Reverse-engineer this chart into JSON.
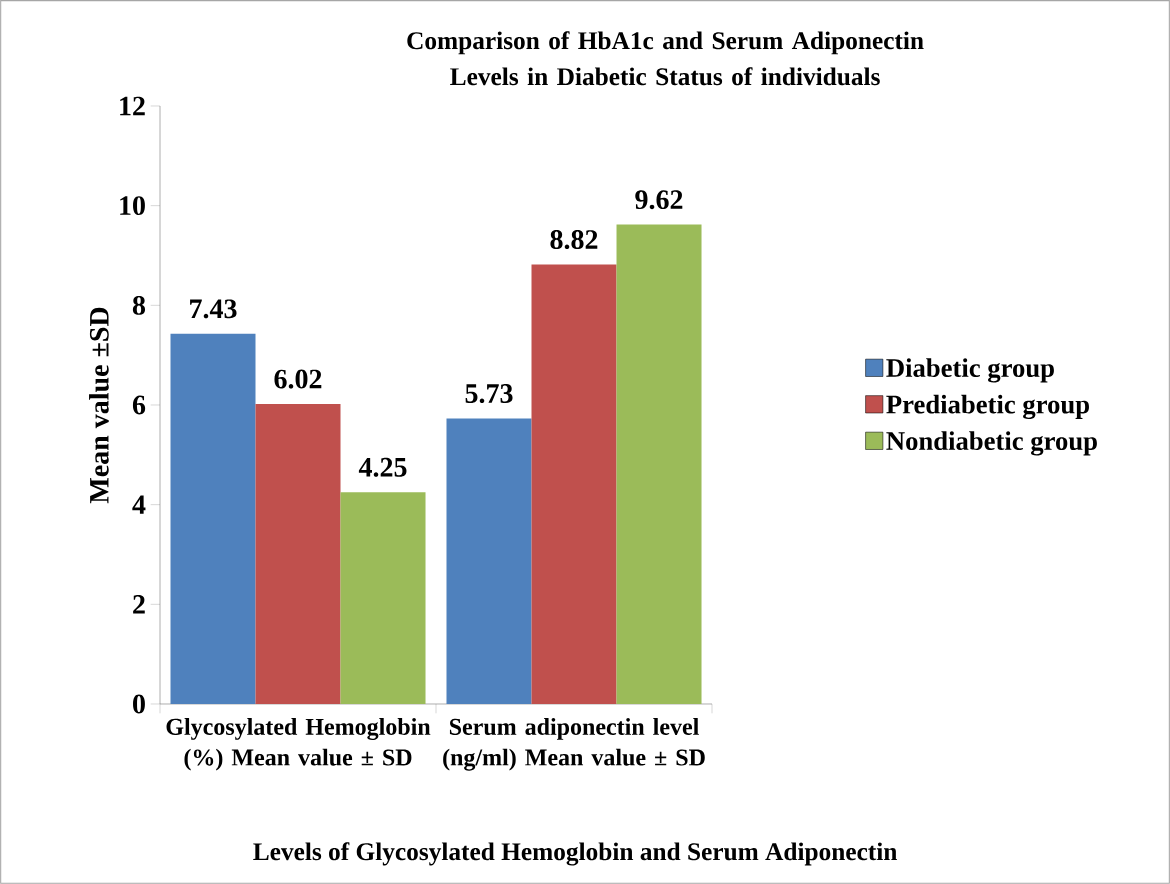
{
  "chart_data": {
    "type": "bar",
    "title": "Comparison of HbA1c and Serum Adiponectin Levels in Diabetic Status of individuals",
    "xlabel": "Levels of Glycosylated Hemoglobin and Serum Adiponectin",
    "ylabel": "Mean value ±SD",
    "categories": [
      "Glycosylated Hemoglobin (%) Mean value ± SD",
      "Serum adiponectin level (ng/ml) Mean value ± SD"
    ],
    "series": [
      {
        "name": "Diabetic group",
        "color": "#4f81bd",
        "values": [
          7.43,
          5.73
        ]
      },
      {
        "name": "Prediabetic group",
        "color": "#c0504d",
        "values": [
          6.02,
          8.82
        ]
      },
      {
        "name": "Nondiabetic group",
        "color": "#9bbb59",
        "values": [
          4.25,
          9.62
        ]
      }
    ],
    "ylim": [
      0,
      12
    ],
    "yticks": [
      0,
      2,
      4,
      6,
      8,
      10,
      12
    ],
    "data_labels": true,
    "legend": "right",
    "grid": false
  }
}
